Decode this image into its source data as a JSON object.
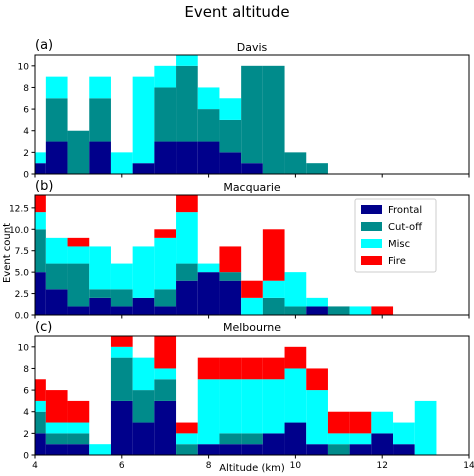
{
  "figure": {
    "title": "Event altitude",
    "ylabel": "Event count",
    "xlabel": "Altitude (km)"
  },
  "legend": {
    "placement": "top-right of panel (b)",
    "entries": [
      {
        "name": "Frontal",
        "color": "#00008b"
      },
      {
        "name": "Cut-off",
        "color": "#008b8b"
      },
      {
        "name": "Misc",
        "color": "#00ffff"
      },
      {
        "name": "Fire",
        "color": "#ff0000"
      }
    ]
  },
  "chart_data": [
    {
      "type": "bar",
      "stacked": true,
      "panel_label": "(a)",
      "title": "Davis",
      "bin_edges": [
        4.0,
        4.25,
        4.75,
        5.25,
        5.75,
        6.25,
        6.75,
        7.25,
        7.75,
        8.25,
        8.75,
        9.25,
        9.75,
        10.25,
        10.75
      ],
      "series": [
        {
          "name": "Frontal",
          "values": [
            1,
            3,
            0,
            3,
            0,
            1,
            3,
            3,
            3,
            2,
            1,
            0,
            0,
            0
          ]
        },
        {
          "name": "Cut-off",
          "values": [
            0,
            4,
            4,
            4,
            0,
            0,
            5,
            7,
            3,
            3,
            9,
            10,
            2,
            1
          ]
        },
        {
          "name": "Misc",
          "values": [
            1,
            2,
            0,
            2,
            2,
            8,
            2,
            1,
            2,
            2,
            0,
            0,
            0,
            0
          ]
        },
        {
          "name": "Fire",
          "values": [
            0,
            0,
            0,
            0,
            0,
            0,
            0,
            0,
            0,
            0,
            0,
            0,
            0,
            0
          ]
        }
      ],
      "xlim": [
        4,
        14
      ],
      "ylim": [
        0,
        11
      ],
      "yticks": [
        0,
        2,
        4,
        6,
        8,
        10
      ]
    },
    {
      "type": "bar",
      "stacked": true,
      "panel_label": "(b)",
      "title": "Macquarie",
      "bin_edges": [
        4.0,
        4.25,
        4.75,
        5.25,
        5.75,
        6.25,
        6.75,
        7.25,
        7.75,
        8.25,
        8.75,
        9.25,
        9.75,
        10.25,
        10.75,
        11.25,
        11.75,
        12.25
      ],
      "series": [
        {
          "name": "Frontal",
          "values": [
            5,
            3,
            1,
            2,
            1,
            2,
            1,
            4,
            5,
            4,
            0,
            0,
            0,
            1,
            0,
            0,
            0
          ]
        },
        {
          "name": "Cut-off",
          "values": [
            5,
            3,
            5,
            1,
            2,
            0,
            2,
            2,
            0,
            1,
            0,
            2,
            1,
            0,
            1,
            0,
            0
          ]
        },
        {
          "name": "Misc",
          "values": [
            2,
            3,
            2,
            5,
            3,
            6,
            6,
            6,
            1,
            0,
            2,
            2,
            4,
            1,
            0,
            1,
            0
          ]
        },
        {
          "name": "Fire",
          "values": [
            2,
            0,
            1,
            0,
            0,
            0,
            1,
            2,
            0,
            3,
            2,
            6,
            0,
            0,
            0,
            0,
            1
          ]
        }
      ],
      "xlim": [
        4,
        14
      ],
      "ylim": [
        0,
        14
      ],
      "yticks": [
        0.0,
        2.5,
        5.0,
        7.5,
        10.0,
        12.5
      ]
    },
    {
      "type": "bar",
      "stacked": true,
      "panel_label": "(c)",
      "title": "Melbourne",
      "bin_edges": [
        4.0,
        4.25,
        4.75,
        5.25,
        5.75,
        6.25,
        6.75,
        7.25,
        7.75,
        8.25,
        8.75,
        9.25,
        9.75,
        10.25,
        10.75,
        11.25,
        11.75,
        12.25,
        12.75,
        13.25
      ],
      "series": [
        {
          "name": "Frontal",
          "values": [
            2,
            1,
            1,
            0,
            5,
            3,
            5,
            0,
            1,
            1,
            1,
            2,
            3,
            1,
            0,
            1,
            2,
            1,
            0
          ]
        },
        {
          "name": "Cut-off",
          "values": [
            2,
            1,
            1,
            0,
            4,
            3,
            2,
            1,
            0,
            1,
            1,
            0,
            0,
            0,
            1,
            0,
            0,
            0,
            0
          ]
        },
        {
          "name": "Misc",
          "values": [
            1,
            1,
            1,
            1,
            1,
            3,
            1,
            1,
            6,
            5,
            5,
            5,
            5,
            5,
            1,
            1,
            2,
            2,
            5
          ]
        },
        {
          "name": "Fire",
          "values": [
            2,
            3,
            2,
            0,
            1,
            0,
            3,
            1,
            2,
            2,
            2,
            2,
            2,
            2,
            2,
            2,
            0,
            0,
            0
          ]
        }
      ],
      "xlim": [
        4,
        14
      ],
      "ylim": [
        0,
        11
      ],
      "yticks": [
        0,
        2,
        4,
        6,
        8,
        10
      ],
      "xticks": [
        4,
        6,
        8,
        10,
        12,
        14
      ]
    }
  ]
}
